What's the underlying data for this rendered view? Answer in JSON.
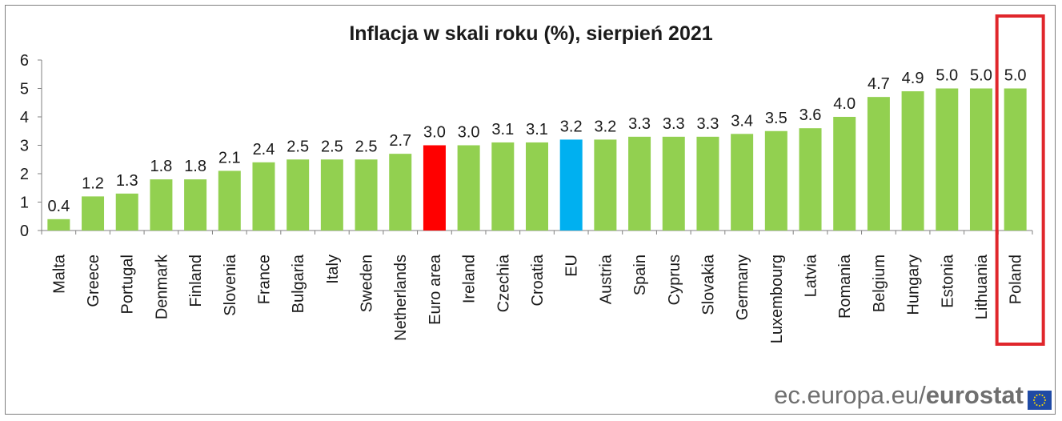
{
  "chart_data": {
    "type": "bar",
    "title": "Inflacja w skali roku (%), sierpień 2021",
    "categories": [
      "Malta",
      "Greece",
      "Portugal",
      "Denmark",
      "Finland",
      "Slovenia",
      "France",
      "Bulgaria",
      "Italy",
      "Sweden",
      "Netherlands",
      "Euro area",
      "Ireland",
      "Czechia",
      "Croatia",
      "EU",
      "Austria",
      "Spain",
      "Cyprus",
      "Slovakia",
      "Germany",
      "Luxembourg",
      "Latvia",
      "Romania",
      "Belgium",
      "Hungary",
      "Estonia",
      "Lithuania",
      "Poland"
    ],
    "values": [
      0.4,
      1.2,
      1.3,
      1.8,
      1.8,
      2.1,
      2.4,
      2.5,
      2.5,
      2.5,
      2.7,
      3.0,
      3.0,
      3.1,
      3.1,
      3.2,
      3.2,
      3.3,
      3.3,
      3.3,
      3.4,
      3.5,
      3.6,
      4.0,
      4.7,
      4.9,
      5.0,
      5.0,
      5.0
    ],
    "value_labels": [
      "0.4",
      "1.2",
      "1.3",
      "1.8",
      "1.8",
      "2.1",
      "2.4",
      "2.5",
      "2.5",
      "2.5",
      "2.7",
      "3.0",
      "3.0",
      "3.1",
      "3.1",
      "3.2",
      "3.2",
      "3.3",
      "3.3",
      "3.3",
      "3.4",
      "3.5",
      "3.6",
      "4.0",
      "4.7",
      "4.9",
      "5.0",
      "5.0",
      "5.0"
    ],
    "bar_colors": [
      "#92d050",
      "#92d050",
      "#92d050",
      "#92d050",
      "#92d050",
      "#92d050",
      "#92d050",
      "#92d050",
      "#92d050",
      "#92d050",
      "#92d050",
      "#ff0000",
      "#92d050",
      "#92d050",
      "#92d050",
      "#00b0f0",
      "#92d050",
      "#92d050",
      "#92d050",
      "#92d050",
      "#92d050",
      "#92d050",
      "#92d050",
      "#92d050",
      "#92d050",
      "#92d050",
      "#92d050",
      "#92d050",
      "#92d050"
    ],
    "highlighted_category": "Poland",
    "highlight_color": "#e0262b",
    "ylim": [
      0,
      6
    ],
    "yticks": [
      "0",
      "1",
      "2",
      "3",
      "4",
      "5",
      "6"
    ],
    "grid": false,
    "legend": "none"
  },
  "footer": {
    "domain": "ec.europa.eu/",
    "brand": "eurostat"
  },
  "eu_flag_icon": "eu-flag-icon"
}
